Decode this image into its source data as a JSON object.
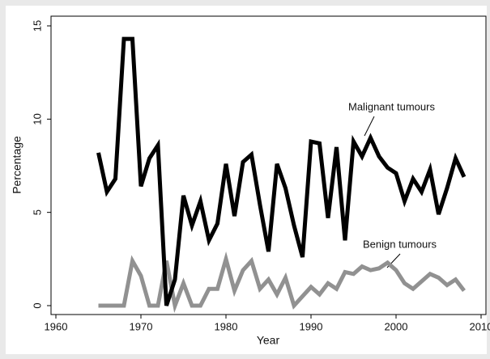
{
  "chart_data": {
    "type": "line",
    "x": [
      1965,
      1966,
      1967,
      1968,
      1969,
      1970,
      1971,
      1972,
      1973,
      1974,
      1975,
      1976,
      1977,
      1978,
      1979,
      1980,
      1981,
      1982,
      1983,
      1984,
      1985,
      1986,
      1987,
      1988,
      1989,
      1990,
      1991,
      1992,
      1993,
      1994,
      1995,
      1996,
      1997,
      1998,
      1999,
      2000,
      2001,
      2002,
      2003,
      2004,
      2005,
      2006,
      2007,
      2008
    ],
    "series": [
      {
        "name": "Malignant tumours",
        "color": "#000000",
        "values": [
          8.2,
          6.1,
          6.8,
          14.3,
          14.3,
          6.4,
          7.9,
          8.6,
          0,
          1.4,
          5.9,
          4.3,
          5.6,
          3.5,
          4.4,
          7.6,
          4.8,
          7.7,
          8.1,
          5.4,
          2.9,
          7.6,
          6.3,
          4.3,
          2.6,
          8.8,
          8.7,
          4.7,
          8.5,
          3.5,
          8.8,
          8.0,
          9.0,
          8.0,
          7.4,
          7.1,
          5.6,
          6.8,
          6.1,
          7.3,
          4.9,
          6.3,
          7.9,
          6.9
        ]
      },
      {
        "name": "Benign tumours",
        "color": "#919191",
        "values": [
          0,
          0,
          0,
          0,
          2.4,
          1.6,
          0,
          0,
          2.4,
          0,
          1.2,
          0,
          0,
          0.9,
          0.9,
          2.5,
          0.8,
          1.9,
          2.4,
          0.9,
          1.4,
          0.6,
          1.5,
          0,
          0.5,
          1.0,
          0.6,
          1.2,
          0.9,
          1.8,
          1.7,
          2.1,
          1.9,
          2.0,
          2.3,
          1.9,
          1.2,
          0.9,
          1.3,
          1.7,
          1.5,
          1.1,
          1.4,
          0.8
        ]
      }
    ],
    "xlabel": "Year",
    "ylabel": "Percentage",
    "xlim": [
      1960,
      2010
    ],
    "xticks": [
      1960,
      1970,
      1980,
      1990,
      2000,
      2010
    ],
    "ylim": [
      0,
      15
    ],
    "yticks": [
      0,
      5,
      10,
      15
    ]
  }
}
